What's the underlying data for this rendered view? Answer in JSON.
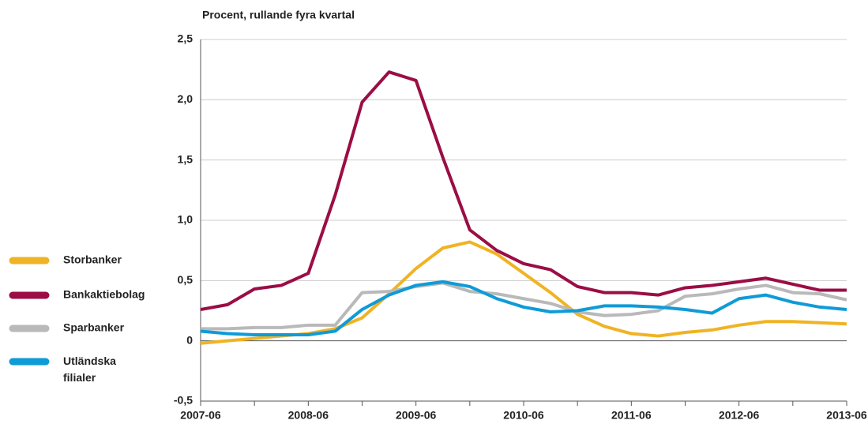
{
  "chart_data": {
    "type": "line",
    "title": "Procent, rullande fyra kvartal",
    "categories": [
      "2007-06",
      null,
      null,
      null,
      "2008-06",
      null,
      null,
      null,
      "2009-06",
      null,
      null,
      null,
      "2010-06",
      null,
      null,
      null,
      "2011-06",
      null,
      null,
      null,
      "2012-06",
      null,
      null,
      null,
      "2013-06"
    ],
    "series": [
      {
        "name": "Storbanker",
        "color": "#f0b323",
        "values": [
          -0.02,
          0.0,
          0.02,
          0.04,
          0.06,
          0.1,
          0.19,
          0.39,
          0.6,
          0.77,
          0.82,
          0.72,
          0.56,
          0.4,
          0.22,
          0.12,
          0.06,
          0.04,
          0.07,
          0.09,
          0.13,
          0.16,
          0.16,
          0.15,
          0.14
        ]
      },
      {
        "name": "Bankaktiebolag",
        "color": "#9b0d45",
        "values": [
          0.26,
          0.3,
          0.43,
          0.46,
          0.56,
          1.21,
          1.98,
          2.23,
          2.16,
          1.52,
          0.92,
          0.75,
          0.64,
          0.59,
          0.45,
          0.4,
          0.4,
          0.38,
          0.44,
          0.46,
          0.49,
          0.52,
          0.47,
          0.42,
          0.42
        ]
      },
      {
        "name": "Sparbanker",
        "color": "#b9b9b9",
        "values": [
          0.1,
          0.1,
          0.11,
          0.11,
          0.13,
          0.13,
          0.4,
          0.41,
          0.45,
          0.48,
          0.41,
          0.39,
          0.35,
          0.31,
          0.24,
          0.21,
          0.22,
          0.25,
          0.37,
          0.39,
          0.43,
          0.46,
          0.4,
          0.39,
          0.34
        ]
      },
      {
        "name": "Utländska filialer",
        "color": "#0f9bd7",
        "values": [
          0.08,
          0.06,
          0.05,
          0.05,
          0.05,
          0.08,
          0.26,
          0.38,
          0.46,
          0.49,
          0.45,
          0.35,
          0.28,
          0.24,
          0.25,
          0.29,
          0.29,
          0.28,
          0.26,
          0.23,
          0.35,
          0.38,
          0.32,
          0.28,
          0.26
        ]
      }
    ],
    "ylim": [
      -0.5,
      2.5
    ],
    "yticks": [
      {
        "value": -0.5,
        "label": "-0,5"
      },
      0,
      {
        "value": 0.5,
        "label": "0,5"
      },
      {
        "value": 1.0,
        "label": "1,0"
      },
      {
        "value": 1.5,
        "label": "1,5"
      },
      {
        "value": 2.0,
        "label": "2,0"
      },
      {
        "value": 2.5,
        "label": "2,5"
      }
    ],
    "grid": true,
    "legend": "left"
  }
}
